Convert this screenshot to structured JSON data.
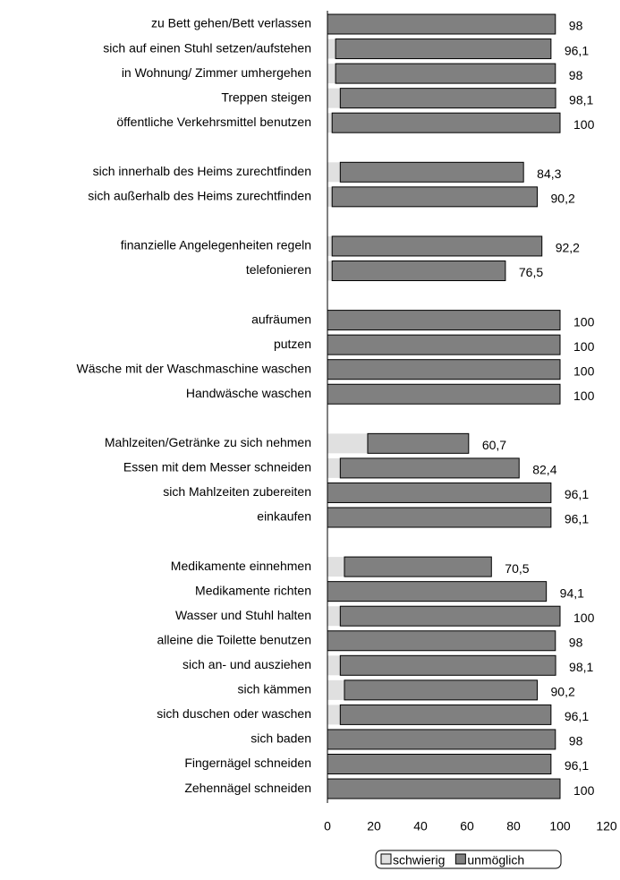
{
  "chart_data": {
    "type": "stacked-barh",
    "categories": [
      "zu Bett gehen/Bett verlassen",
      "sich auf einen Stuhl setzen/aufstehen",
      "in Wohnung/ Zimmer umhergehen",
      "Treppen steigen",
      "öffentliche Verkehrsmittel benutzen",
      null,
      "sich innerhalb des Heims zurechtfinden",
      "sich außerhalb des Heims zurechtfinden",
      null,
      "finanzielle Angelegenheiten regeln",
      "telefonieren",
      null,
      "aufräumen",
      "putzen",
      "Wäsche mit der Waschmaschine waschen",
      "Handwäsche waschen",
      null,
      "Mahlzeiten/Getränke zu sich nehmen",
      "Essen mit dem Messer schneiden",
      "sich Mahlzeiten zubereiten",
      "einkaufen",
      null,
      "Medikamente einnehmen",
      "Medikamente richten",
      "Wasser und Stuhl halten",
      "alleine die Toilette benutzen",
      "sich an- und ausziehen ",
      "sich kämmen",
      "sich duschen oder waschen",
      "sich baden",
      "Fingernägel schneiden",
      "Zehennägel schneiden"
    ],
    "series": [
      {
        "name": "schwierig",
        "color": "#e0e0e0",
        "values": [
          0,
          3.5,
          3.5,
          5.5,
          2,
          null,
          5.5,
          2,
          null,
          2,
          2,
          null,
          0,
          0,
          0,
          0,
          null,
          17.3,
          5.5,
          0,
          0,
          null,
          7.3,
          0,
          5.5,
          0,
          5.5,
          7.3,
          5.5,
          0,
          0,
          0
        ]
      },
      {
        "name": "unmöglich",
        "color": "#808080",
        "values": [
          98,
          92.6,
          94.5,
          92.6,
          98,
          null,
          78.8,
          88.2,
          null,
          90.2,
          74.5,
          null,
          100,
          100,
          100,
          100,
          null,
          43.4,
          76.9,
          96.1,
          96.1,
          null,
          63.2,
          94.1,
          94.5,
          98,
          92.6,
          82.9,
          90.6,
          98,
          96.1,
          100
        ]
      }
    ],
    "totals": [
      98,
      96.1,
      98,
      98.1,
      100,
      null,
      84.3,
      90.2,
      null,
      92.2,
      76.5,
      null,
      100,
      100,
      100,
      100,
      null,
      60.7,
      82.4,
      96.1,
      96.1,
      null,
      70.5,
      94.1,
      100,
      98,
      98.1,
      90.2,
      96.1,
      98,
      96.1,
      100
    ],
    "total_labels": [
      "98",
      "96,1",
      "98",
      "98,1",
      "100",
      null,
      "84,3",
      "90,2",
      null,
      "92,2",
      "76,5",
      null,
      "100",
      "100",
      "100",
      "100",
      null,
      "60,7",
      "82,4",
      "96,1",
      "96,1",
      null,
      "70,5",
      "94,1",
      "100",
      "98",
      "98,1",
      "90,2",
      "96,1",
      "98",
      "96,1",
      "100"
    ],
    "xlim": [
      0,
      120
    ],
    "xticks": [
      0,
      20,
      40,
      60,
      80,
      100,
      120
    ],
    "legend": "bottom"
  }
}
